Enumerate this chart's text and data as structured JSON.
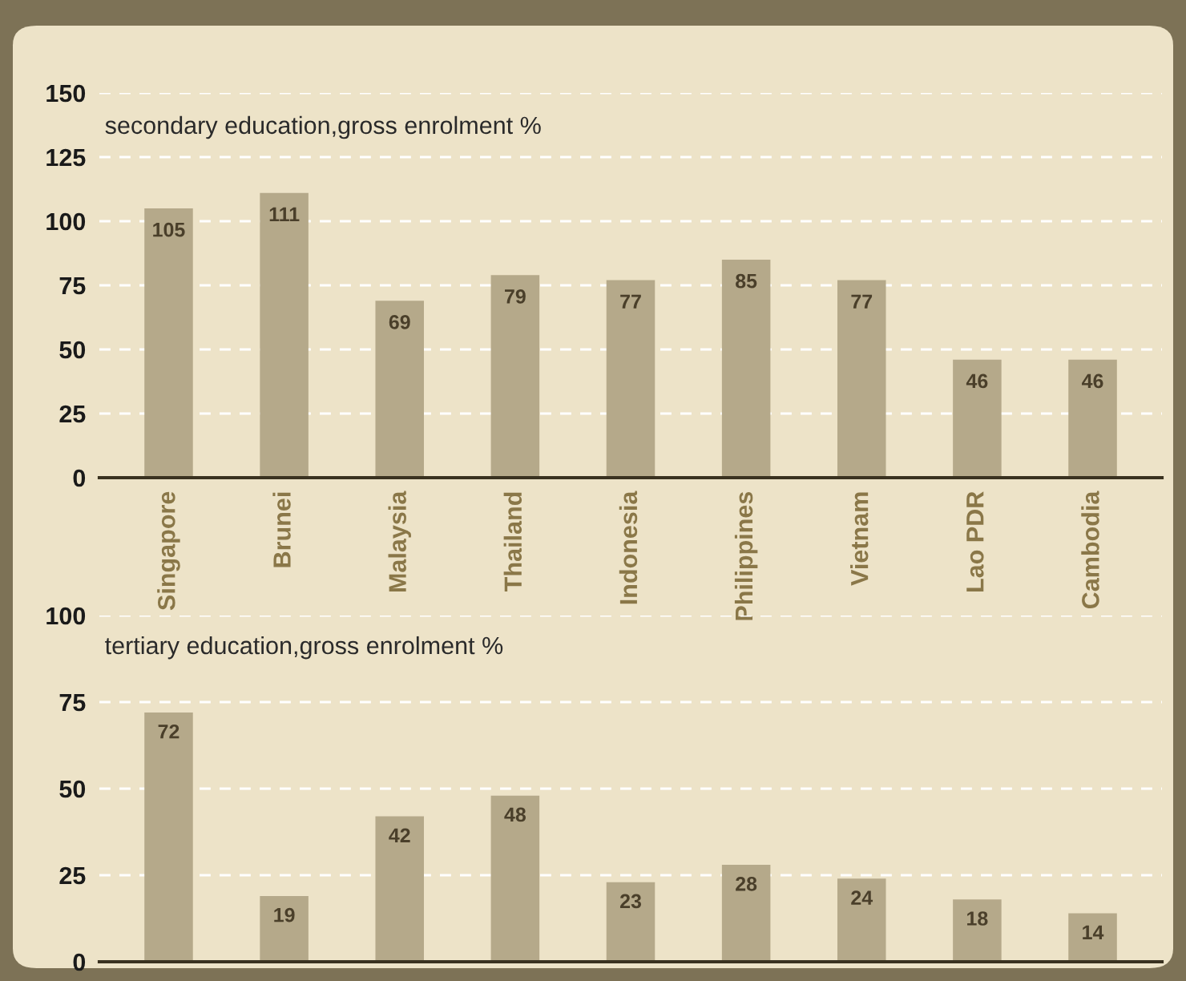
{
  "chart_data": [
    {
      "type": "bar",
      "title": "secondary education,gross enrolment %",
      "categories": [
        "Singapore",
        "Brunei",
        "Malaysia",
        "Thailand",
        "Indonesia",
        "Philippines",
        "Vietnam",
        "Lao PDR",
        "Cambodia"
      ],
      "values": [
        105,
        111,
        69,
        79,
        77,
        85,
        77,
        46,
        46
      ],
      "color": "#b5a98a",
      "ylim": [
        0,
        150
      ],
      "yticks": [
        0,
        25,
        50,
        75,
        100,
        125,
        150
      ],
      "grid": "y",
      "data_labels": true
    },
    {
      "type": "bar",
      "title": "tertiary education,gross enrolment %",
      "categories": [
        null,
        null,
        null,
        null,
        null,
        null,
        null,
        null,
        null
      ],
      "values": [
        72,
        19,
        42,
        48,
        23,
        28,
        24,
        18,
        14
      ],
      "color": "#b5a98a",
      "ylim": [
        0,
        100
      ],
      "yticks": [
        0,
        25,
        50,
        75,
        100
      ],
      "grid": "y",
      "data_labels": true,
      "tick_labels": "y"
    }
  ]
}
